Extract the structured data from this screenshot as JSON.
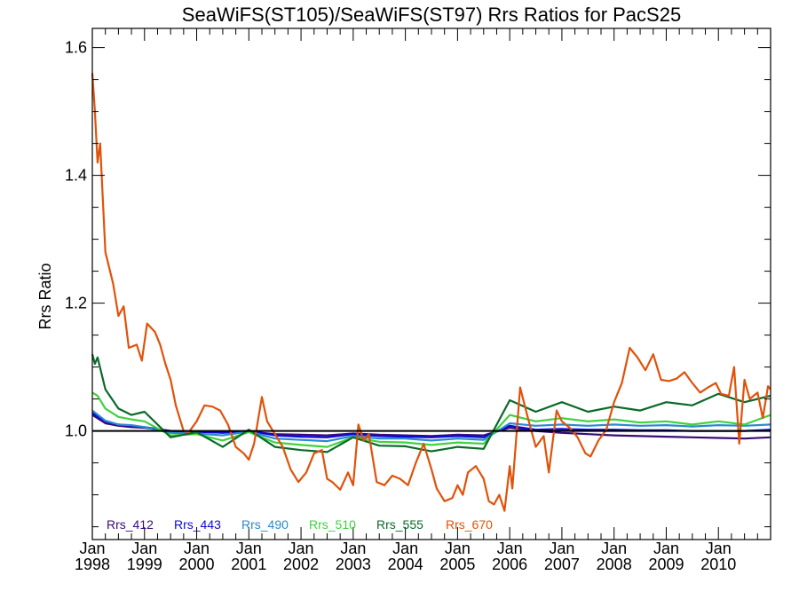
{
  "chart_data": {
    "type": "line",
    "title": "SeaWiFS(ST105)/SeaWiFS(ST97)  Rrs Ratios for PacS25",
    "xlabel": "",
    "ylabel": "Rrs Ratio",
    "x_range": [
      1998.0,
      2011.0
    ],
    "ylim": [
      0.83,
      1.63
    ],
    "y_ticks": [
      "1.0",
      "1.2",
      "1.4",
      "1.6"
    ],
    "x_ticks": [
      {
        "month": "Jan",
        "year": "1998"
      },
      {
        "month": "Jan",
        "year": "1999"
      },
      {
        "month": "Jan",
        "year": "2000"
      },
      {
        "month": "Jan",
        "year": "2001"
      },
      {
        "month": "Jan",
        "year": "2002"
      },
      {
        "month": "Jan",
        "year": "2003"
      },
      {
        "month": "Jan",
        "year": "2004"
      },
      {
        "month": "Jan",
        "year": "2005"
      },
      {
        "month": "Jan",
        "year": "2006"
      },
      {
        "month": "Jan",
        "year": "2007"
      },
      {
        "month": "Jan",
        "year": "2008"
      },
      {
        "month": "Jan",
        "year": "2009"
      },
      {
        "month": "Jan",
        "year": "2010"
      }
    ],
    "reference_line": 1.0,
    "legend_placement": "bottom-left",
    "series": [
      {
        "name": "Rrs_412",
        "color": "#3a0a7a",
        "points": [
          [
            1998.0,
            1.025
          ],
          [
            1998.25,
            1.012
          ],
          [
            1998.5,
            1.008
          ],
          [
            1998.75,
            1.006
          ],
          [
            1999.0,
            1.005
          ],
          [
            1999.5,
            1.0
          ],
          [
            2000.0,
            0.998
          ],
          [
            2000.5,
            0.998
          ],
          [
            2001.0,
            0.999
          ],
          [
            2001.5,
            0.995
          ],
          [
            2002.0,
            0.994
          ],
          [
            2002.5,
            0.993
          ],
          [
            2003.0,
            0.996
          ],
          [
            2003.5,
            0.994
          ],
          [
            2004.0,
            0.993
          ],
          [
            2004.5,
            0.992
          ],
          [
            2005.0,
            0.994
          ],
          [
            2005.5,
            0.993
          ],
          [
            2006.0,
            1.005
          ],
          [
            2006.5,
            1.0
          ],
          [
            2007.0,
            0.997
          ],
          [
            2007.5,
            0.995
          ],
          [
            2008.0,
            0.993
          ],
          [
            2008.5,
            0.992
          ],
          [
            2009.0,
            0.991
          ],
          [
            2009.5,
            0.99
          ],
          [
            2010.0,
            0.989
          ],
          [
            2010.5,
            0.988
          ],
          [
            2011.0,
            0.99
          ]
        ]
      },
      {
        "name": "Rrs_443",
        "color": "#0a0ad8",
        "points": [
          [
            1998.0,
            1.028
          ],
          [
            1998.25,
            1.015
          ],
          [
            1998.5,
            1.01
          ],
          [
            1998.75,
            1.008
          ],
          [
            1999.0,
            1.006
          ],
          [
            1999.5,
            1.0
          ],
          [
            2000.0,
            0.999
          ],
          [
            2000.5,
            0.997
          ],
          [
            2001.0,
            1.0
          ],
          [
            2001.5,
            0.993
          ],
          [
            2002.0,
            0.991
          ],
          [
            2002.5,
            0.99
          ],
          [
            2003.0,
            0.995
          ],
          [
            2003.5,
            0.992
          ],
          [
            2004.0,
            0.991
          ],
          [
            2004.5,
            0.99
          ],
          [
            2005.0,
            0.992
          ],
          [
            2005.5,
            0.99
          ],
          [
            2006.0,
            1.008
          ],
          [
            2006.5,
            1.002
          ],
          [
            2007.0,
            1.003
          ],
          [
            2007.5,
            1.002
          ],
          [
            2008.0,
            1.002
          ],
          [
            2008.5,
            1.001
          ],
          [
            2009.0,
            1.001
          ],
          [
            2009.5,
            1.0
          ],
          [
            2010.0,
            1.0
          ],
          [
            2010.5,
            1.0
          ],
          [
            2011.0,
            1.002
          ]
        ]
      },
      {
        "name": "Rrs_490",
        "color": "#2a8ad0",
        "points": [
          [
            1998.0,
            1.032
          ],
          [
            1998.25,
            1.016
          ],
          [
            1998.5,
            1.01
          ],
          [
            1998.75,
            1.009
          ],
          [
            1999.0,
            1.006
          ],
          [
            1999.5,
            0.997
          ],
          [
            2000.0,
            0.996
          ],
          [
            2000.5,
            0.993
          ],
          [
            2001.0,
            0.999
          ],
          [
            2001.5,
            0.988
          ],
          [
            2002.0,
            0.986
          ],
          [
            2002.5,
            0.984
          ],
          [
            2003.0,
            0.992
          ],
          [
            2003.5,
            0.988
          ],
          [
            2004.0,
            0.988
          ],
          [
            2004.5,
            0.985
          ],
          [
            2005.0,
            0.988
          ],
          [
            2005.5,
            0.986
          ],
          [
            2006.0,
            1.012
          ],
          [
            2006.5,
            1.008
          ],
          [
            2007.0,
            1.01
          ],
          [
            2007.5,
            1.008
          ],
          [
            2008.0,
            1.01
          ],
          [
            2008.5,
            1.008
          ],
          [
            2009.0,
            1.009
          ],
          [
            2009.5,
            1.007
          ],
          [
            2010.0,
            1.009
          ],
          [
            2010.5,
            1.008
          ],
          [
            2011.0,
            1.01
          ]
        ]
      },
      {
        "name": "Rrs_510",
        "color": "#3fd23f",
        "points": [
          [
            1998.0,
            1.06
          ],
          [
            1998.1,
            1.055
          ],
          [
            1998.25,
            1.035
          ],
          [
            1998.5,
            1.022
          ],
          [
            1998.75,
            1.018
          ],
          [
            1999.0,
            1.015
          ],
          [
            1999.5,
            0.993
          ],
          [
            2000.0,
            0.995
          ],
          [
            2000.5,
            0.985
          ],
          [
            2001.0,
            0.998
          ],
          [
            2001.5,
            0.982
          ],
          [
            2002.0,
            0.978
          ],
          [
            2002.5,
            0.975
          ],
          [
            2003.0,
            0.99
          ],
          [
            2003.5,
            0.983
          ],
          [
            2004.0,
            0.982
          ],
          [
            2004.5,
            0.978
          ],
          [
            2005.0,
            0.982
          ],
          [
            2005.5,
            0.98
          ],
          [
            2006.0,
            1.025
          ],
          [
            2006.5,
            1.015
          ],
          [
            2007.0,
            1.02
          ],
          [
            2007.5,
            1.015
          ],
          [
            2008.0,
            1.018
          ],
          [
            2008.5,
            1.013
          ],
          [
            2009.0,
            1.015
          ],
          [
            2009.5,
            1.01
          ],
          [
            2010.0,
            1.015
          ],
          [
            2010.5,
            1.01
          ],
          [
            2011.0,
            1.025
          ]
        ]
      },
      {
        "name": "Rrs_555",
        "color": "#0a6a2a",
        "points": [
          [
            1998.0,
            1.12
          ],
          [
            1998.05,
            1.105
          ],
          [
            1998.1,
            1.115
          ],
          [
            1998.25,
            1.065
          ],
          [
            1998.5,
            1.035
          ],
          [
            1998.75,
            1.025
          ],
          [
            1999.0,
            1.03
          ],
          [
            1999.5,
            0.99
          ],
          [
            2000.0,
            0.998
          ],
          [
            2000.5,
            0.975
          ],
          [
            2001.0,
            1.002
          ],
          [
            2001.5,
            0.975
          ],
          [
            2002.0,
            0.97
          ],
          [
            2002.5,
            0.967
          ],
          [
            2003.0,
            0.99
          ],
          [
            2003.5,
            0.977
          ],
          [
            2004.0,
            0.976
          ],
          [
            2004.5,
            0.968
          ],
          [
            2005.0,
            0.975
          ],
          [
            2005.5,
            0.972
          ],
          [
            2006.0,
            1.048
          ],
          [
            2006.5,
            1.03
          ],
          [
            2007.0,
            1.045
          ],
          [
            2007.5,
            1.03
          ],
          [
            2008.0,
            1.038
          ],
          [
            2008.5,
            1.032
          ],
          [
            2009.0,
            1.045
          ],
          [
            2009.5,
            1.04
          ],
          [
            2010.0,
            1.058
          ],
          [
            2010.5,
            1.045
          ],
          [
            2011.0,
            1.055
          ]
        ]
      },
      {
        "name": "Rrs_670",
        "color": "#e0520a",
        "points": [
          [
            1998.0,
            1.56
          ],
          [
            1998.05,
            1.5
          ],
          [
            1998.1,
            1.42
          ],
          [
            1998.15,
            1.45
          ],
          [
            1998.25,
            1.28
          ],
          [
            1998.4,
            1.23
          ],
          [
            1998.5,
            1.18
          ],
          [
            1998.6,
            1.195
          ],
          [
            1998.7,
            1.13
          ],
          [
            1998.85,
            1.135
          ],
          [
            1998.95,
            1.11
          ],
          [
            1999.05,
            1.168
          ],
          [
            1999.2,
            1.155
          ],
          [
            1999.3,
            1.135
          ],
          [
            1999.4,
            1.105
          ],
          [
            1999.5,
            1.08
          ],
          [
            1999.6,
            1.04
          ],
          [
            1999.75,
            1.0
          ],
          [
            1999.85,
            0.998
          ],
          [
            2000.0,
            1.015
          ],
          [
            2000.15,
            1.04
          ],
          [
            2000.3,
            1.038
          ],
          [
            2000.45,
            1.032
          ],
          [
            2000.6,
            1.01
          ],
          [
            2000.75,
            0.975
          ],
          [
            2000.9,
            0.965
          ],
          [
            2001.0,
            0.955
          ],
          [
            2001.1,
            0.98
          ],
          [
            2001.25,
            1.053
          ],
          [
            2001.35,
            1.015
          ],
          [
            2001.5,
            0.995
          ],
          [
            2001.65,
            0.975
          ],
          [
            2001.8,
            0.94
          ],
          [
            2001.95,
            0.92
          ],
          [
            2002.1,
            0.935
          ],
          [
            2002.25,
            0.965
          ],
          [
            2002.4,
            0.97
          ],
          [
            2002.5,
            0.925
          ],
          [
            2002.6,
            0.92
          ],
          [
            2002.75,
            0.908
          ],
          [
            2002.9,
            0.935
          ],
          [
            2003.0,
            0.915
          ],
          [
            2003.1,
            1.01
          ],
          [
            2003.2,
            0.985
          ],
          [
            2003.3,
            0.995
          ],
          [
            2003.45,
            0.92
          ],
          [
            2003.6,
            0.915
          ],
          [
            2003.75,
            0.93
          ],
          [
            2003.9,
            0.925
          ],
          [
            2004.05,
            0.915
          ],
          [
            2004.2,
            0.95
          ],
          [
            2004.35,
            0.98
          ],
          [
            2004.5,
            0.94
          ],
          [
            2004.6,
            0.91
          ],
          [
            2004.75,
            0.89
          ],
          [
            2004.9,
            0.895
          ],
          [
            2005.0,
            0.915
          ],
          [
            2005.1,
            0.9
          ],
          [
            2005.2,
            0.935
          ],
          [
            2005.35,
            0.945
          ],
          [
            2005.5,
            0.925
          ],
          [
            2005.6,
            0.89
          ],
          [
            2005.7,
            0.885
          ],
          [
            2005.8,
            0.9
          ],
          [
            2005.9,
            0.875
          ],
          [
            2006.0,
            0.945
          ],
          [
            2006.05,
            0.91
          ],
          [
            2006.2,
            1.068
          ],
          [
            2006.35,
            1.02
          ],
          [
            2006.5,
            0.975
          ],
          [
            2006.65,
            0.992
          ],
          [
            2006.75,
            0.935
          ],
          [
            2006.9,
            1.032
          ],
          [
            2007.0,
            1.015
          ],
          [
            2007.15,
            1.005
          ],
          [
            2007.3,
            0.99
          ],
          [
            2007.45,
            0.965
          ],
          [
            2007.55,
            0.96
          ],
          [
            2007.7,
            0.985
          ],
          [
            2007.85,
            1.002
          ],
          [
            2008.0,
            1.045
          ],
          [
            2008.15,
            1.075
          ],
          [
            2008.3,
            1.13
          ],
          [
            2008.45,
            1.115
          ],
          [
            2008.6,
            1.095
          ],
          [
            2008.75,
            1.12
          ],
          [
            2008.9,
            1.08
          ],
          [
            2009.05,
            1.078
          ],
          [
            2009.2,
            1.082
          ],
          [
            2009.35,
            1.092
          ],
          [
            2009.5,
            1.075
          ],
          [
            2009.65,
            1.06
          ],
          [
            2009.8,
            1.068
          ],
          [
            2009.95,
            1.075
          ],
          [
            2010.05,
            1.058
          ],
          [
            2010.2,
            1.055
          ],
          [
            2010.3,
            1.1
          ],
          [
            2010.4,
            0.98
          ],
          [
            2010.5,
            1.08
          ],
          [
            2010.6,
            1.05
          ],
          [
            2010.75,
            1.06
          ],
          [
            2010.85,
            1.02
          ],
          [
            2010.95,
            1.07
          ],
          [
            2011.0,
            1.065
          ]
        ]
      }
    ]
  }
}
